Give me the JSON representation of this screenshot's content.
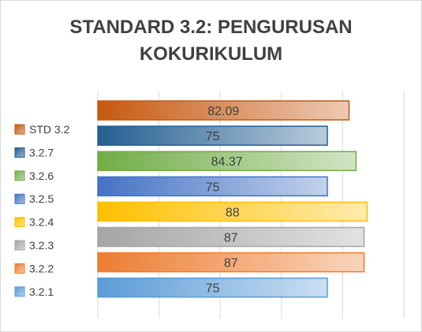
{
  "chart_data": {
    "type": "bar",
    "orientation": "horizontal",
    "title_lines": [
      "STANDARD 3.2: PENGURUSAN",
      "KOKURIKULUM"
    ],
    "categories": [
      "STD 3.2",
      "3.2.7",
      "3.2.6",
      "3.2.5",
      "3.2.4",
      "3.2.3",
      "3.2.2",
      "3.2.1"
    ],
    "values": [
      82.09,
      75,
      84.37,
      75,
      88,
      87,
      87,
      75
    ],
    "data_labels": [
      "82.09",
      "75",
      "84.37",
      "75",
      "88",
      "87",
      "87",
      "75"
    ],
    "colors": [
      "#C65911",
      "#255E91",
      "#70AD47",
      "#4472C4",
      "#FFC000",
      "#A5A5A5",
      "#ED7D31",
      "#5B9BD5"
    ],
    "xlim": [
      0,
      100
    ],
    "grid": true,
    "legend": "left"
  }
}
